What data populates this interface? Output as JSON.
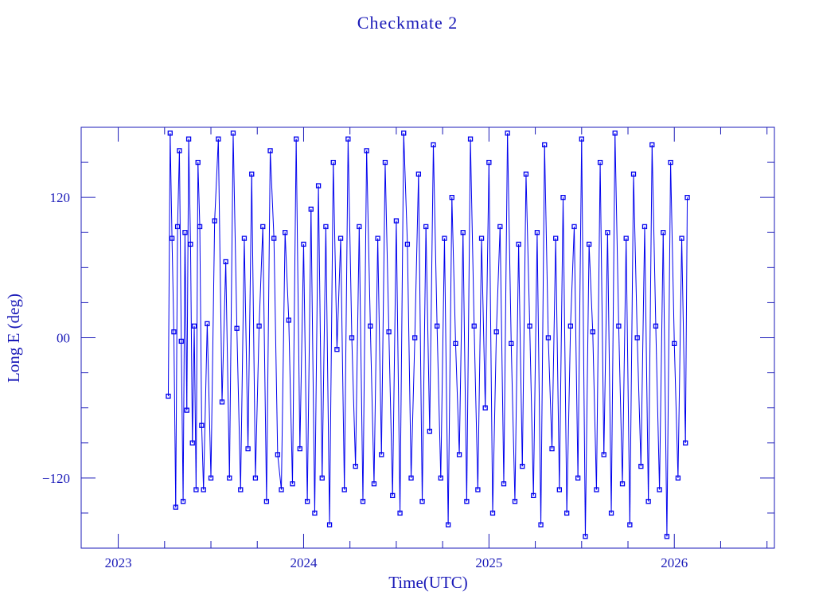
{
  "chart_data": {
    "type": "line",
    "title": "Checkmate 2",
    "xlabel": "Time(UTC)",
    "ylabel": "Long E (deg)",
    "xlim": [
      2022.8,
      2026.54
    ],
    "ylim": [
      -180,
      180
    ],
    "xticks": [
      2023,
      2024,
      2025,
      2026
    ],
    "xtick_labels": [
      "2023",
      "2024",
      "2025",
      "2026"
    ],
    "yticks": [
      -120,
      0,
      120
    ],
    "ytick_labels": [
      "−120",
      "00",
      "120"
    ],
    "grid": false,
    "marker": "square",
    "color": "#0000ee",
    "series": [
      {
        "name": "Checkmate 2",
        "points": [
          [
            2023.27,
            -50
          ],
          [
            2023.28,
            175
          ],
          [
            2023.29,
            85
          ],
          [
            2023.3,
            5
          ],
          [
            2023.31,
            -145
          ],
          [
            2023.32,
            95
          ],
          [
            2023.33,
            160
          ],
          [
            2023.34,
            -3
          ],
          [
            2023.35,
            -140
          ],
          [
            2023.36,
            90
          ],
          [
            2023.37,
            -62
          ],
          [
            2023.38,
            170
          ],
          [
            2023.39,
            80
          ],
          [
            2023.4,
            -90
          ],
          [
            2023.41,
            10
          ],
          [
            2023.42,
            -130
          ],
          [
            2023.43,
            150
          ],
          [
            2023.44,
            95
          ],
          [
            2023.45,
            -75
          ],
          [
            2023.46,
            -130
          ],
          [
            2023.48,
            12
          ],
          [
            2023.5,
            -120
          ],
          [
            2023.52,
            100
          ],
          [
            2023.54,
            170
          ],
          [
            2023.56,
            -55
          ],
          [
            2023.58,
            65
          ],
          [
            2023.6,
            -120
          ],
          [
            2023.62,
            175
          ],
          [
            2023.64,
            8
          ],
          [
            2023.66,
            -130
          ],
          [
            2023.68,
            85
          ],
          [
            2023.7,
            -95
          ],
          [
            2023.72,
            140
          ],
          [
            2023.74,
            -120
          ],
          [
            2023.76,
            10
          ],
          [
            2023.78,
            95
          ],
          [
            2023.8,
            -140
          ],
          [
            2023.82,
            160
          ],
          [
            2023.84,
            85
          ],
          [
            2023.86,
            -100
          ],
          [
            2023.88,
            -130
          ],
          [
            2023.9,
            90
          ],
          [
            2023.92,
            15
          ],
          [
            2023.94,
            -125
          ],
          [
            2023.96,
            170
          ],
          [
            2023.98,
            -95
          ],
          [
            2024.0,
            80
          ],
          [
            2024.02,
            -140
          ],
          [
            2024.04,
            110
          ],
          [
            2024.06,
            -150
          ],
          [
            2024.08,
            130
          ],
          [
            2024.1,
            -120
          ],
          [
            2024.12,
            95
          ],
          [
            2024.14,
            -160
          ],
          [
            2024.16,
            150
          ],
          [
            2024.18,
            -10
          ],
          [
            2024.2,
            85
          ],
          [
            2024.22,
            -130
          ],
          [
            2024.24,
            170
          ],
          [
            2024.26,
            0
          ],
          [
            2024.28,
            -110
          ],
          [
            2024.3,
            95
          ],
          [
            2024.32,
            -140
          ],
          [
            2024.34,
            160
          ],
          [
            2024.36,
            10
          ],
          [
            2024.38,
            -125
          ],
          [
            2024.4,
            85
          ],
          [
            2024.42,
            -100
          ],
          [
            2024.44,
            150
          ],
          [
            2024.46,
            5
          ],
          [
            2024.48,
            -135
          ],
          [
            2024.5,
            100
          ],
          [
            2024.52,
            -150
          ],
          [
            2024.54,
            175
          ],
          [
            2024.56,
            80
          ],
          [
            2024.58,
            -120
          ],
          [
            2024.6,
            0
          ],
          [
            2024.62,
            140
          ],
          [
            2024.64,
            -140
          ],
          [
            2024.66,
            95
          ],
          [
            2024.68,
            -80
          ],
          [
            2024.7,
            165
          ],
          [
            2024.72,
            10
          ],
          [
            2024.74,
            -120
          ],
          [
            2024.76,
            85
          ],
          [
            2024.78,
            -160
          ],
          [
            2024.8,
            120
          ],
          [
            2024.82,
            -5
          ],
          [
            2024.84,
            -100
          ],
          [
            2024.86,
            90
          ],
          [
            2024.88,
            -140
          ],
          [
            2024.9,
            170
          ],
          [
            2024.92,
            10
          ],
          [
            2024.94,
            -130
          ],
          [
            2024.96,
            85
          ],
          [
            2024.98,
            -60
          ],
          [
            2025.0,
            150
          ],
          [
            2025.02,
            -150
          ],
          [
            2025.04,
            5
          ],
          [
            2025.06,
            95
          ],
          [
            2025.08,
            -125
          ],
          [
            2025.1,
            175
          ],
          [
            2025.12,
            -5
          ],
          [
            2025.14,
            -140
          ],
          [
            2025.16,
            80
          ],
          [
            2025.18,
            -110
          ],
          [
            2025.2,
            140
          ],
          [
            2025.22,
            10
          ],
          [
            2025.24,
            -135
          ],
          [
            2025.26,
            90
          ],
          [
            2025.28,
            -160
          ],
          [
            2025.3,
            165
          ],
          [
            2025.32,
            0
          ],
          [
            2025.34,
            -95
          ],
          [
            2025.36,
            85
          ],
          [
            2025.38,
            -130
          ],
          [
            2025.4,
            120
          ],
          [
            2025.42,
            -150
          ],
          [
            2025.44,
            10
          ],
          [
            2025.46,
            95
          ],
          [
            2025.48,
            -120
          ],
          [
            2025.5,
            170
          ],
          [
            2025.52,
            -170
          ],
          [
            2025.54,
            80
          ],
          [
            2025.56,
            5
          ],
          [
            2025.58,
            -130
          ],
          [
            2025.6,
            150
          ],
          [
            2025.62,
            -100
          ],
          [
            2025.64,
            90
          ],
          [
            2025.66,
            -150
          ],
          [
            2025.68,
            175
          ],
          [
            2025.7,
            10
          ],
          [
            2025.72,
            -125
          ],
          [
            2025.74,
            85
          ],
          [
            2025.76,
            -160
          ],
          [
            2025.78,
            140
          ],
          [
            2025.8,
            0
          ],
          [
            2025.82,
            -110
          ],
          [
            2025.84,
            95
          ],
          [
            2025.86,
            -140
          ],
          [
            2025.88,
            165
          ],
          [
            2025.9,
            10
          ],
          [
            2025.92,
            -130
          ],
          [
            2025.94,
            90
          ],
          [
            2025.96,
            -170
          ],
          [
            2025.98,
            150
          ],
          [
            2026.0,
            -5
          ],
          [
            2026.02,
            -120
          ],
          [
            2026.04,
            85
          ],
          [
            2026.06,
            -90
          ],
          [
            2026.07,
            120
          ]
        ]
      }
    ]
  }
}
